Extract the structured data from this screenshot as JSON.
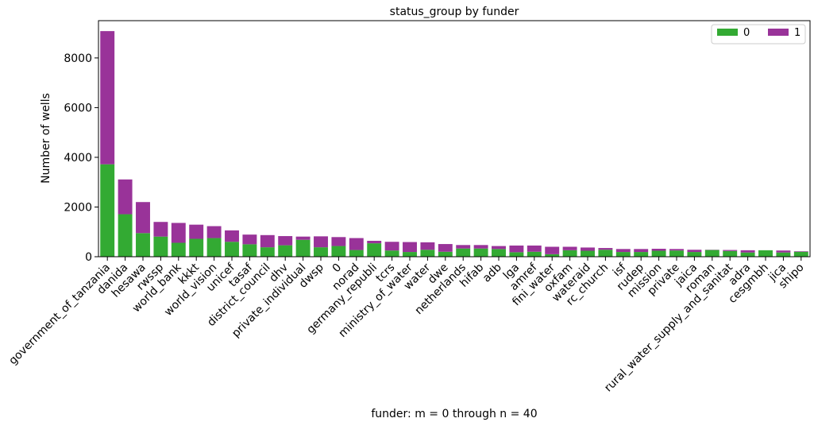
{
  "chart_data": {
    "type": "bar",
    "stacked": true,
    "title": "status_group by funder",
    "xlabel": "funder: m = 0 through n = 40",
    "ylabel": "Number of wells",
    "ylim": [
      0,
      9500
    ],
    "yticks": [
      0,
      2000,
      4000,
      6000,
      8000
    ],
    "legend_position": "top-right",
    "categories": [
      "government_of_tanzania",
      "danida",
      "hesawa",
      "rwssp",
      "world_bank",
      "kkkt",
      "world_vision",
      "unicef",
      "tasaf",
      "district_council",
      "dhv",
      "private_individual",
      "dwsp",
      "0",
      "norad",
      "germany_republi",
      "tcrs",
      "ministry_of_water",
      "water",
      "dwe",
      "netherlands",
      "hifab",
      "adb",
      "lga",
      "amref",
      "fini_water",
      "oxfam",
      "wateraid",
      "rc_church",
      "isf",
      "rudep",
      "mission",
      "private",
      "jaica",
      "roman",
      "rural_water_supply_and_sanitat",
      "adra",
      "cesgmbh",
      "jica",
      "shipo"
    ],
    "series": [
      {
        "name": "0",
        "color": "#33aa33",
        "values": [
          3720,
          1710,
          950,
          810,
          560,
          720,
          750,
          600,
          500,
          380,
          460,
          680,
          380,
          430,
          270,
          540,
          250,
          190,
          280,
          200,
          330,
          330,
          310,
          180,
          200,
          100,
          260,
          240,
          280,
          190,
          190,
          240,
          250,
          190,
          270,
          230,
          170,
          260,
          170,
          200
        ]
      },
      {
        "name": "1",
        "color": "#993399",
        "values": [
          5360,
          1400,
          1250,
          590,
          800,
          570,
          480,
          460,
          390,
          490,
          370,
          130,
          440,
          360,
          480,
          100,
          350,
          400,
          300,
          310,
          140,
          140,
          120,
          270,
          250,
          300,
          140,
          130,
          70,
          120,
          120,
          80,
          60,
          90,
          10,
          40,
          90,
          0,
          80,
          20
        ]
      }
    ]
  }
}
